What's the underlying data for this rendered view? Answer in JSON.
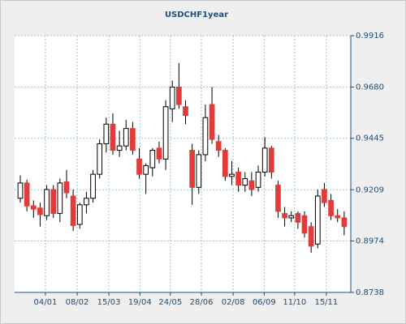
{
  "chart_data": {
    "type": "candlestick",
    "title": "USDCHF1year",
    "up_color": "#ffffff",
    "down_color": "#e03c3c",
    "edge_color": "#000000",
    "grid": true,
    "xlim": [
      -0.86,
      50.0
    ],
    "xticks": [
      {
        "value": 3.8,
        "label": "04/01"
      },
      {
        "value": 8.6,
        "label": "08/02"
      },
      {
        "value": 13.4,
        "label": "15/03"
      },
      {
        "value": 18.1,
        "label": "19/04"
      },
      {
        "value": 22.7,
        "label": "24/05"
      },
      {
        "value": 27.4,
        "label": "28/06"
      },
      {
        "value": 32.2,
        "label": "02/08"
      },
      {
        "value": 36.9,
        "label": "06/09"
      },
      {
        "value": 41.5,
        "label": "11/10"
      },
      {
        "value": 46.3,
        "label": "15/11"
      }
    ],
    "ylim": [
      0.8738,
      0.9916
    ],
    "yticks": [
      {
        "value": 0.8738,
        "label": "0.8738"
      },
      {
        "value": 0.8974,
        "label": "0.8974"
      },
      {
        "value": 0.9209,
        "label": "0.9209"
      },
      {
        "value": 0.9445,
        "label": "0.9445"
      },
      {
        "value": 0.968,
        "label": "0.9680"
      },
      {
        "value": 0.9916,
        "label": "0.9916"
      }
    ],
    "open": [
      0.917,
      0.924,
      0.9135,
      0.9125,
      0.909,
      0.921,
      0.91,
      0.9245,
      0.918,
      0.905,
      0.914,
      0.917,
      0.928,
      0.942,
      0.951,
      0.939,
      0.941,
      0.949,
      0.935,
      0.928,
      0.931,
      0.94,
      0.935,
      0.958,
      0.968,
      0.959,
      0.939,
      0.922,
      0.937,
      0.96,
      0.943,
      0.939,
      0.927,
      0.929,
      0.923,
      0.925,
      0.922,
      0.929,
      0.94,
      0.923,
      0.91,
      0.908,
      0.91,
      0.909,
      0.904,
      0.896,
      0.921,
      0.916,
      0.909,
      0.908
    ],
    "high": [
      0.9275,
      0.9255,
      0.916,
      0.915,
      0.923,
      0.923,
      0.926,
      0.93,
      0.921,
      0.915,
      0.92,
      0.93,
      0.944,
      0.954,
      0.956,
      0.948,
      0.953,
      0.952,
      0.94,
      0.933,
      0.94,
      0.943,
      0.962,
      0.971,
      0.979,
      0.962,
      0.942,
      0.939,
      0.96,
      0.968,
      0.946,
      0.94,
      0.934,
      0.931,
      0.929,
      0.929,
      0.932,
      0.945,
      0.941,
      0.925,
      0.913,
      0.911,
      0.911,
      0.911,
      0.906,
      0.921,
      0.924,
      0.919,
      0.912,
      0.911
    ],
    "low": [
      0.915,
      0.911,
      0.908,
      0.904,
      0.907,
      0.908,
      0.906,
      0.917,
      0.902,
      0.903,
      0.91,
      0.915,
      0.926,
      0.938,
      0.937,
      0.936,
      0.939,
      0.937,
      0.926,
      0.919,
      0.927,
      0.933,
      0.93,
      0.952,
      0.958,
      0.951,
      0.914,
      0.919,
      0.934,
      0.942,
      0.936,
      0.925,
      0.923,
      0.92,
      0.92,
      0.918,
      0.92,
      0.927,
      0.926,
      0.908,
      0.904,
      0.906,
      0.903,
      0.899,
      0.892,
      0.894,
      0.913,
      0.907,
      0.906,
      0.9
    ],
    "close": [
      0.924,
      0.9135,
      0.912,
      0.9095,
      0.921,
      0.91,
      0.924,
      0.9195,
      0.9045,
      0.914,
      0.917,
      0.928,
      0.942,
      0.951,
      0.939,
      0.941,
      0.949,
      0.939,
      0.928,
      0.932,
      0.939,
      0.935,
      0.959,
      0.968,
      0.96,
      0.955,
      0.922,
      0.937,
      0.954,
      0.944,
      0.939,
      0.927,
      0.928,
      0.923,
      0.926,
      0.921,
      0.929,
      0.94,
      0.929,
      0.911,
      0.908,
      0.909,
      0.906,
      0.901,
      0.895,
      0.918,
      0.915,
      0.909,
      0.908,
      0.904
    ]
  }
}
